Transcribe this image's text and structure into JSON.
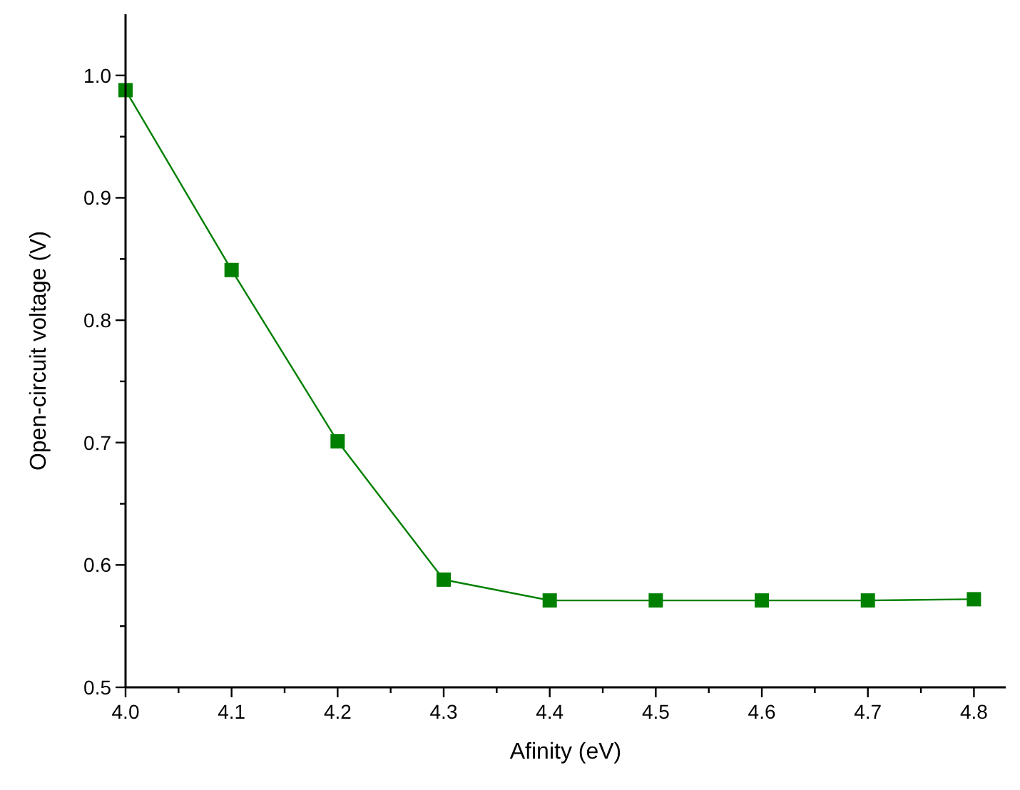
{
  "chart_data": {
    "type": "line",
    "xlabel": "Afinity (eV)",
    "ylabel": "Open-circuit voltage (V)",
    "x": [
      4.0,
      4.1,
      4.2,
      4.3,
      4.4,
      4.5,
      4.6,
      4.7,
      4.8
    ],
    "series": [
      {
        "color": "#008000",
        "values": [
          0.988,
          0.841,
          0.701,
          0.588,
          0.571,
          0.571,
          0.571,
          0.571,
          0.572
        ]
      }
    ],
    "xlim": [
      4.0,
      4.83
    ],
    "xticks": [
      {
        "value": 4.0,
        "label": "4.0"
      },
      {
        "value": 4.05,
        "label": null
      },
      4.1,
      {
        "value": 4.15,
        "label": null
      },
      4.2,
      {
        "value": 4.25,
        "label": null
      },
      4.3,
      {
        "value": 4.35,
        "label": null
      },
      4.4,
      {
        "value": 4.45,
        "label": null
      },
      4.5,
      {
        "value": 4.55,
        "label": null
      },
      4.6,
      {
        "value": 4.65,
        "label": null
      },
      4.7,
      {
        "value": 4.75,
        "label": null
      },
      4.8
    ],
    "ylim": [
      0.5,
      1.05
    ],
    "yticks": [
      0.5,
      {
        "value": 0.55,
        "label": null
      },
      0.6,
      {
        "value": 0.65,
        "label": null
      },
      0.7,
      {
        "value": 0.75,
        "label": null
      },
      0.8,
      {
        "value": 0.85,
        "label": null
      },
      0.9,
      {
        "value": 0.95,
        "label": null
      },
      {
        "value": 1.0,
        "label": "1.0"
      }
    ],
    "marker": "square",
    "grid": false
  }
}
